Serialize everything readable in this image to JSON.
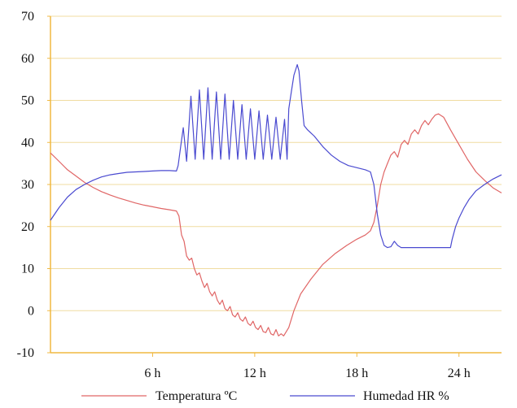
{
  "chart_data": {
    "type": "line",
    "xlim": [
      0,
      26.5
    ],
    "ylim": [
      -10,
      70
    ],
    "x_ticks": [
      {
        "value": 6,
        "label": "6 h"
      },
      {
        "value": 12,
        "label": "12 h"
      },
      {
        "value": 18,
        "label": "18 h"
      },
      {
        "value": 24,
        "label": "24 h"
      }
    ],
    "y_ticks": [
      -10,
      0,
      10,
      20,
      30,
      40,
      50,
      60,
      70
    ],
    "grid": "horizontal",
    "legend_position": "bottom",
    "colors": {
      "temperature": "#e06666",
      "humidity": "#4a4ad0",
      "grid": "#f0dca0",
      "axis": "#f0b840"
    },
    "series": [
      {
        "name": "Temperatura ºC",
        "color": "#e06666",
        "points": [
          [
            0,
            37.5
          ],
          [
            0.5,
            35.5
          ],
          [
            1,
            33.5
          ],
          [
            1.5,
            32
          ],
          [
            2,
            30.5
          ],
          [
            2.5,
            29.3
          ],
          [
            3,
            28.3
          ],
          [
            3.5,
            27.5
          ],
          [
            4,
            26.8
          ],
          [
            4.5,
            26.2
          ],
          [
            5,
            25.6
          ],
          [
            5.5,
            25.1
          ],
          [
            6,
            24.7
          ],
          [
            6.5,
            24.3
          ],
          [
            7,
            24
          ],
          [
            7.4,
            23.7
          ],
          [
            7.55,
            22.5
          ],
          [
            7.7,
            18
          ],
          [
            7.85,
            16.5
          ],
          [
            8,
            13
          ],
          [
            8.15,
            12
          ],
          [
            8.3,
            12.5
          ],
          [
            8.45,
            10
          ],
          [
            8.6,
            8.5
          ],
          [
            8.75,
            9
          ],
          [
            8.9,
            7
          ],
          [
            9.05,
            5.5
          ],
          [
            9.2,
            6.5
          ],
          [
            9.35,
            4.5
          ],
          [
            9.5,
            3.5
          ],
          [
            9.65,
            4.5
          ],
          [
            9.8,
            2.5
          ],
          [
            9.95,
            1.5
          ],
          [
            10.1,
            2.5
          ],
          [
            10.25,
            0.5
          ],
          [
            10.4,
            0
          ],
          [
            10.55,
            1
          ],
          [
            10.7,
            -1
          ],
          [
            10.85,
            -1.5
          ],
          [
            11,
            -0.5
          ],
          [
            11.15,
            -2
          ],
          [
            11.3,
            -2.5
          ],
          [
            11.45,
            -1.5
          ],
          [
            11.6,
            -3
          ],
          [
            11.75,
            -3.5
          ],
          [
            11.9,
            -2.5
          ],
          [
            12.05,
            -4
          ],
          [
            12.2,
            -4.5
          ],
          [
            12.35,
            -3.5
          ],
          [
            12.5,
            -5
          ],
          [
            12.65,
            -5.2
          ],
          [
            12.8,
            -4
          ],
          [
            12.95,
            -5.5
          ],
          [
            13.1,
            -5.8
          ],
          [
            13.25,
            -4.5
          ],
          [
            13.4,
            -6
          ],
          [
            13.55,
            -5.5
          ],
          [
            13.7,
            -6
          ],
          [
            14,
            -4
          ],
          [
            14.3,
            0
          ],
          [
            14.7,
            4
          ],
          [
            15.3,
            7.5
          ],
          [
            16,
            11
          ],
          [
            16.7,
            13.5
          ],
          [
            17.4,
            15.5
          ],
          [
            18,
            17
          ],
          [
            18.5,
            18
          ],
          [
            18.8,
            19
          ],
          [
            19,
            21
          ],
          [
            19.2,
            25
          ],
          [
            19.4,
            30
          ],
          [
            19.6,
            33
          ],
          [
            19.8,
            35
          ],
          [
            20,
            37
          ],
          [
            20.2,
            37.8
          ],
          [
            20.4,
            36.5
          ],
          [
            20.6,
            39.5
          ],
          [
            20.8,
            40.5
          ],
          [
            21,
            39.5
          ],
          [
            21.2,
            42
          ],
          [
            21.4,
            43
          ],
          [
            21.6,
            42
          ],
          [
            21.8,
            44
          ],
          [
            22,
            45.2
          ],
          [
            22.2,
            44.2
          ],
          [
            22.4,
            45.5
          ],
          [
            22.6,
            46.5
          ],
          [
            22.8,
            46.8
          ],
          [
            23.1,
            46
          ],
          [
            23.5,
            43
          ],
          [
            24,
            39.5
          ],
          [
            24.5,
            36
          ],
          [
            25,
            33
          ],
          [
            25.5,
            31
          ],
          [
            26,
            29.2
          ],
          [
            26.5,
            28
          ]
        ]
      },
      {
        "name": "Humedad HR %",
        "color": "#4a4ad0",
        "points": [
          [
            0,
            21.5
          ],
          [
            0.5,
            24.5
          ],
          [
            1,
            27
          ],
          [
            1.5,
            28.8
          ],
          [
            2,
            30
          ],
          [
            2.5,
            31
          ],
          [
            3,
            31.8
          ],
          [
            3.5,
            32.3
          ],
          [
            4,
            32.6
          ],
          [
            4.5,
            32.9
          ],
          [
            5,
            33
          ],
          [
            5.5,
            33.1
          ],
          [
            6,
            33.2
          ],
          [
            6.5,
            33.3
          ],
          [
            7,
            33.3
          ],
          [
            7.4,
            33.2
          ],
          [
            7.5,
            34.5
          ],
          [
            7.65,
            39
          ],
          [
            7.8,
            43.5
          ],
          [
            8,
            35.5
          ],
          [
            8.25,
            51
          ],
          [
            8.5,
            36
          ],
          [
            8.75,
            52.5
          ],
          [
            9,
            36
          ],
          [
            9.25,
            53
          ],
          [
            9.5,
            36
          ],
          [
            9.75,
            52
          ],
          [
            10,
            36
          ],
          [
            10.25,
            51.5
          ],
          [
            10.5,
            36
          ],
          [
            10.75,
            50
          ],
          [
            11,
            36
          ],
          [
            11.25,
            49
          ],
          [
            11.5,
            36
          ],
          [
            11.75,
            48
          ],
          [
            12,
            36
          ],
          [
            12.25,
            47.5
          ],
          [
            12.5,
            36
          ],
          [
            12.75,
            46.5
          ],
          [
            13,
            36
          ],
          [
            13.25,
            46
          ],
          [
            13.5,
            36
          ],
          [
            13.75,
            45.5
          ],
          [
            13.9,
            36
          ],
          [
            14,
            48
          ],
          [
            14.15,
            52
          ],
          [
            14.3,
            56
          ],
          [
            14.5,
            58.5
          ],
          [
            14.6,
            57
          ],
          [
            14.75,
            50
          ],
          [
            14.9,
            44
          ],
          [
            15.1,
            43
          ],
          [
            15.5,
            41.5
          ],
          [
            16,
            39
          ],
          [
            16.5,
            37
          ],
          [
            17,
            35.5
          ],
          [
            17.5,
            34.5
          ],
          [
            18,
            34
          ],
          [
            18.5,
            33.5
          ],
          [
            18.8,
            33
          ],
          [
            19,
            30
          ],
          [
            19.2,
            23
          ],
          [
            19.4,
            18
          ],
          [
            19.6,
            15.5
          ],
          [
            19.8,
            15
          ],
          [
            20,
            15.2
          ],
          [
            20.2,
            16.5
          ],
          [
            20.4,
            15.5
          ],
          [
            20.6,
            15
          ],
          [
            21,
            15
          ],
          [
            21.5,
            15
          ],
          [
            22,
            15
          ],
          [
            22.5,
            15
          ],
          [
            23,
            15
          ],
          [
            23.5,
            15
          ],
          [
            23.6,
            17
          ],
          [
            23.8,
            20
          ],
          [
            24,
            22
          ],
          [
            24.3,
            24.5
          ],
          [
            24.6,
            26.5
          ],
          [
            25,
            28.5
          ],
          [
            25.5,
            30
          ],
          [
            26,
            31.3
          ],
          [
            26.5,
            32.3
          ]
        ]
      }
    ]
  }
}
